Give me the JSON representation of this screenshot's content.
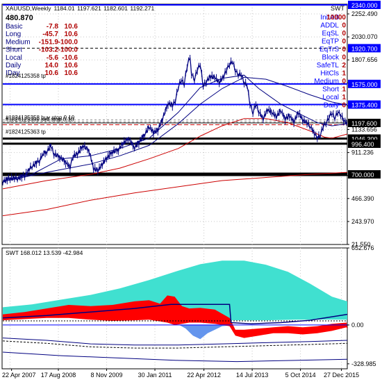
{
  "chart_data": [
    {
      "type": "line",
      "title": "XAUUSD,Weekly",
      "ohlc": [
        "1184.01",
        "1197.621",
        "1182.601",
        "1192.271"
      ],
      "big_value": "480.870",
      "info_rows": [
        {
          "label": "Basic",
          "a": "-7.8",
          "b": "10.6"
        },
        {
          "label": "Long",
          "a": "-45.7",
          "b": "10.6"
        },
        {
          "label": "Medium",
          "a": "-151.9",
          "b": "-100.0"
        },
        {
          "label": "Short",
          "a": "-103.2",
          "b": "-100.0"
        },
        {
          "label": "Local",
          "a": "-5.6",
          "b": "-10.6"
        },
        {
          "label": "Daily",
          "a": "14.0",
          "b": "10.6"
        },
        {
          "label": "IDay",
          "a": "10.6",
          "b": "10.6"
        }
      ],
      "ea_name": "SWT",
      "ea_rows": [
        {
          "label": "InitAB",
          "value": "10000"
        },
        {
          "label": "ADDL",
          "value": "0"
        },
        {
          "label": "EqSL",
          "value": "0"
        },
        {
          "label": "EqTP",
          "value": "0"
        },
        {
          "label": "EqTrS",
          "value": "0"
        },
        {
          "label": "Block",
          "value": "0"
        },
        {
          "label": "SafeTL",
          "value": "2"
        },
        {
          "label": "HitCls",
          "value": "1"
        },
        {
          "label": "Medium",
          "value": "0"
        },
        {
          "label": "Short",
          "value": "1"
        },
        {
          "label": "Local",
          "value": "1"
        },
        {
          "label": "Daily",
          "value": "0"
        }
      ],
      "order_labels": [
        {
          "text": "#1824125358 tp",
          "price": 1626
        },
        {
          "text": "#1824125358 buy stop 0.10",
          "price": 1226
        },
        {
          "text": "#1824125399 sell stop 0.10",
          "price": 1207
        },
        {
          "text": "#1824125363 tp",
          "price": 1087
        }
      ],
      "y_axis_ticks": [
        "2252.490",
        "2030.070",
        "1807.656",
        "1585.236",
        "1362.816",
        "1133.656",
        "911.236",
        "688.816",
        "466.390",
        "243.970",
        "21.550"
      ],
      "price_badges": [
        {
          "value": 2340.0,
          "label": "2340.000",
          "style": "blue"
        },
        {
          "value": 1920.7,
          "label": "1920.700",
          "style": "blue"
        },
        {
          "value": 1575.0,
          "label": "1575.000",
          "style": "blue"
        },
        {
          "value": 1375.4,
          "label": "1375.400",
          "style": "blue"
        },
        {
          "value": 1197.6,
          "label": "1197.600",
          "style": "black"
        },
        {
          "value": 1046.3,
          "label": "1046.300",
          "style": "black"
        },
        {
          "value": 996.4,
          "label": "996.400",
          "style": "black"
        },
        {
          "value": 700.0,
          "label": "700.000",
          "style": "black"
        }
      ],
      "ylim": [
        21.55,
        2340.0
      ],
      "x_labels": [
        "22 Apr 2007",
        "17 Aug 2008",
        "8 Nov 2009",
        "30 Jan 2011",
        "22 Apr 2012",
        "14 Jul 2013",
        "5 Oct 2014",
        "27 Dec 2015"
      ],
      "xlim": [
        "2007-02-25",
        "2016-02-28"
      ],
      "weeks": 471,
      "price": [
        [
          0,
          632
        ],
        [
          10,
          665
        ],
        [
          20,
          660
        ],
        [
          30,
          690
        ],
        [
          40,
          780
        ],
        [
          50,
          830
        ],
        [
          55,
          905
        ],
        [
          60,
          920
        ],
        [
          66,
          980
        ],
        [
          70,
          900
        ],
        [
          78,
          870
        ],
        [
          86,
          820
        ],
        [
          92,
          770
        ],
        [
          96,
          880
        ],
        [
          102,
          900
        ],
        [
          110,
          980
        ],
        [
          118,
          930
        ],
        [
          124,
          760
        ],
        [
          130,
          740
        ],
        [
          136,
          800
        ],
        [
          142,
          860
        ],
        [
          150,
          920
        ],
        [
          158,
          940
        ],
        [
          164,
          1000
        ],
        [
          172,
          1050
        ],
        [
          180,
          960
        ],
        [
          186,
          1010
        ],
        [
          194,
          1090
        ],
        [
          200,
          1160
        ],
        [
          206,
          1110
        ],
        [
          212,
          1130
        ],
        [
          218,
          1230
        ],
        [
          226,
          1390
        ],
        [
          232,
          1370
        ],
        [
          236,
          1420
        ],
        [
          240,
          1550
        ],
        [
          244,
          1620
        ],
        [
          248,
          1580
        ],
        [
          252,
          1750
        ],
        [
          256,
          1850
        ],
        [
          258,
          1680
        ],
        [
          262,
          1620
        ],
        [
          266,
          1720
        ],
        [
          270,
          1770
        ],
        [
          274,
          1560
        ],
        [
          278,
          1600
        ],
        [
          284,
          1650
        ],
        [
          290,
          1640
        ],
        [
          296,
          1590
        ],
        [
          302,
          1650
        ],
        [
          306,
          1720
        ],
        [
          310,
          1770
        ],
        [
          314,
          1800
        ],
        [
          318,
          1710
        ],
        [
          322,
          1670
        ],
        [
          326,
          1670
        ],
        [
          330,
          1590
        ],
        [
          334,
          1570
        ],
        [
          338,
          1390
        ],
        [
          342,
          1300
        ],
        [
          346,
          1390
        ],
        [
          350,
          1310
        ],
        [
          356,
          1240
        ],
        [
          362,
          1330
        ],
        [
          368,
          1300
        ],
        [
          374,
          1260
        ],
        [
          380,
          1320
        ],
        [
          386,
          1240
        ],
        [
          392,
          1270
        ],
        [
          398,
          1210
        ],
        [
          404,
          1300
        ],
        [
          410,
          1230
        ],
        [
          416,
          1200
        ],
        [
          420,
          1170
        ],
        [
          426,
          1100
        ],
        [
          430,
          1060
        ],
        [
          434,
          1080
        ],
        [
          438,
          1170
        ],
        [
          442,
          1200
        ],
        [
          446,
          1260
        ],
        [
          450,
          1300
        ],
        [
          454,
          1250
        ],
        [
          458,
          1310
        ],
        [
          462,
          1280
        ],
        [
          466,
          1230
        ],
        [
          471,
          1192
        ]
      ],
      "ma_fast": [
        [
          0,
          640
        ],
        [
          40,
          700
        ],
        [
          80,
          850
        ],
        [
          120,
          880
        ],
        [
          160,
          950
        ],
        [
          200,
          1050
        ],
        [
          240,
          1300
        ],
        [
          270,
          1540
        ],
        [
          300,
          1630
        ],
        [
          330,
          1660
        ],
        [
          350,
          1530
        ],
        [
          380,
          1380
        ],
        [
          410,
          1270
        ],
        [
          430,
          1200
        ],
        [
          450,
          1170
        ],
        [
          471,
          1190
        ]
      ],
      "ma_slow": [
        [
          0,
          630
        ],
        [
          60,
          720
        ],
        [
          120,
          800
        ],
        [
          160,
          880
        ],
        [
          200,
          980
        ],
        [
          240,
          1190
        ],
        [
          270,
          1380
        ],
        [
          300,
          1530
        ],
        [
          330,
          1640
        ],
        [
          360,
          1620
        ],
        [
          390,
          1550
        ],
        [
          420,
          1470
        ],
        [
          450,
          1400
        ],
        [
          471,
          1370
        ]
      ],
      "ma_red": [
        [
          0,
          560
        ],
        [
          60,
          640
        ],
        [
          120,
          700
        ],
        [
          160,
          760
        ],
        [
          200,
          850
        ],
        [
          240,
          950
        ],
        [
          270,
          1070
        ],
        [
          300,
          1170
        ],
        [
          330,
          1240
        ],
        [
          360,
          1240
        ],
        [
          390,
          1200
        ],
        [
          420,
          1120
        ],
        [
          440,
          1060
        ],
        [
          450,
          1050
        ],
        [
          471,
          1090
        ]
      ],
      "ma_red_lower": [
        [
          0,
          300
        ],
        [
          60,
          360
        ],
        [
          120,
          450
        ],
        [
          180,
          520
        ],
        [
          240,
          580
        ],
        [
          300,
          640
        ],
        [
          360,
          670
        ],
        [
          420,
          700
        ],
        [
          471,
          720
        ]
      ]
    },
    {
      "type": "area",
      "title": "SWT 168.012 13.539 -42.984",
      "y_axis_ticks": [
        "652.676",
        "0.00",
        "-328.985"
      ],
      "ylim": [
        -371.2,
        652.676
      ],
      "cyan_upper": [
        [
          0,
          150
        ],
        [
          40,
          175
        ],
        [
          80,
          215
        ],
        [
          120,
          255
        ],
        [
          160,
          310
        ],
        [
          200,
          380
        ],
        [
          240,
          460
        ],
        [
          270,
          515
        ],
        [
          300,
          545
        ],
        [
          330,
          545
        ],
        [
          360,
          510
        ],
        [
          390,
          450
        ],
        [
          420,
          350
        ],
        [
          450,
          240
        ],
        [
          471,
          200
        ]
      ],
      "cyan_lower": [
        [
          0,
          60
        ],
        [
          80,
          70
        ],
        [
          160,
          70
        ],
        [
          240,
          65
        ],
        [
          300,
          50
        ],
        [
          310,
          40
        ],
        [
          320,
          40
        ],
        [
          360,
          40
        ],
        [
          400,
          45
        ],
        [
          471,
          45
        ]
      ],
      "red_top": [
        [
          0,
          90
        ],
        [
          30,
          110
        ],
        [
          60,
          140
        ],
        [
          90,
          170
        ],
        [
          120,
          160
        ],
        [
          150,
          170
        ],
        [
          180,
          200
        ],
        [
          200,
          210
        ],
        [
          215,
          180
        ],
        [
          225,
          250
        ],
        [
          235,
          240
        ],
        [
          245,
          160
        ],
        [
          255,
          140
        ],
        [
          270,
          145
        ],
        [
          290,
          130
        ],
        [
          310,
          60
        ],
        [
          318,
          -40
        ],
        [
          330,
          -40
        ],
        [
          350,
          -30
        ],
        [
          370,
          -20
        ],
        [
          390,
          -10
        ],
        [
          410,
          -20
        ],
        [
          430,
          -10
        ],
        [
          450,
          10
        ],
        [
          470,
          20
        ],
        [
          471,
          -20
        ]
      ],
      "red_bottom": [
        [
          0,
          40
        ],
        [
          30,
          50
        ],
        [
          60,
          60
        ],
        [
          90,
          60
        ],
        [
          120,
          45
        ],
        [
          150,
          35
        ],
        [
          180,
          40
        ],
        [
          200,
          45
        ],
        [
          215,
          30
        ],
        [
          225,
          20
        ],
        [
          235,
          0
        ],
        [
          245,
          10
        ],
        [
          255,
          20
        ],
        [
          270,
          20
        ],
        [
          290,
          10
        ],
        [
          310,
          -10
        ],
        [
          318,
          -90
        ],
        [
          330,
          -110
        ],
        [
          350,
          -90
        ],
        [
          370,
          -70
        ],
        [
          390,
          -70
        ],
        [
          410,
          -80
        ],
        [
          430,
          -70
        ],
        [
          450,
          -50
        ],
        [
          470,
          -20
        ],
        [
          471,
          -40
        ]
      ],
      "blue_low": [
        [
          240,
          5
        ],
        [
          250,
          -30
        ],
        [
          260,
          -90
        ],
        [
          270,
          -120
        ],
        [
          280,
          -70
        ],
        [
          290,
          -40
        ],
        [
          300,
          -10
        ],
        [
          310,
          -5
        ]
      ],
      "line_upper": [
        [
          0,
          60
        ],
        [
          60,
          80
        ],
        [
          120,
          110
        ],
        [
          180,
          140
        ],
        [
          230,
          175
        ],
        [
          310,
          175
        ],
        [
          312,
          20
        ],
        [
          340,
          10
        ],
        [
          380,
          20
        ],
        [
          420,
          40
        ],
        [
          471,
          90
        ]
      ],
      "line_lower": [
        [
          0,
          -110
        ],
        [
          60,
          -130
        ],
        [
          120,
          -160
        ],
        [
          180,
          -170
        ],
        [
          240,
          -170
        ],
        [
          300,
          -160
        ],
        [
          360,
          -150
        ],
        [
          420,
          -140
        ],
        [
          471,
          -130
        ]
      ],
      "line_bottom": [
        [
          0,
          -230
        ],
        [
          80,
          -260
        ],
        [
          160,
          -280
        ],
        [
          240,
          -300
        ],
        [
          320,
          -310
        ],
        [
          400,
          -300
        ],
        [
          471,
          -290
        ]
      ]
    }
  ],
  "colors": {
    "price": "#000080",
    "ma_fast": "#000080",
    "ma_slow": "#000080",
    "ma_red": "#cc0000",
    "cyan": "#40e0d0",
    "red_fill": "#ff0000",
    "blue_fill": "#6495ed",
    "info_red": "#b00000",
    "ea_blue": "#0000ff",
    "badge_blue": "#0000ff",
    "badge_black": "#000000"
  }
}
